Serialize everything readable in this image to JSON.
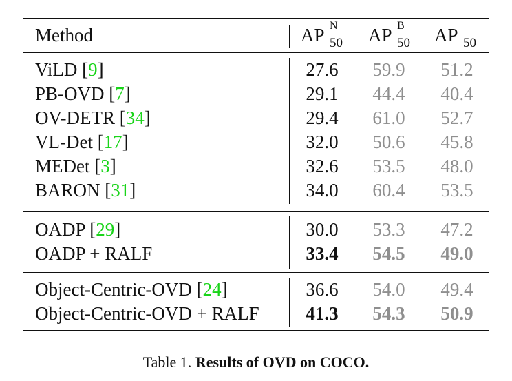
{
  "table": {
    "header": {
      "method": "Method",
      "col1": {
        "base": "AP",
        "sup": "N",
        "sub": "50"
      },
      "col2": {
        "base": "AP",
        "sup": "B",
        "sub": "50"
      },
      "col3": {
        "base": "AP",
        "sup": "",
        "sub": "50"
      }
    },
    "groups": [
      {
        "rows": [
          {
            "name": "ViLD",
            "cite": "9",
            "novel": "27.6",
            "base": "59.9",
            "all": "51.2",
            "bold": false
          },
          {
            "name": "PB-OVD",
            "cite": "7",
            "novel": "29.1",
            "base": "44.4",
            "all": "40.4",
            "bold": false
          },
          {
            "name": "OV-DETR",
            "cite": "34",
            "novel": "29.4",
            "base": "61.0",
            "all": "52.7",
            "bold": false
          },
          {
            "name": "VL-Det",
            "cite": "17",
            "novel": "32.0",
            "base": "50.6",
            "all": "45.8",
            "bold": false
          },
          {
            "name": "MEDet",
            "cite": "3",
            "novel": "32.6",
            "base": "53.5",
            "all": "48.0",
            "bold": false
          },
          {
            "name": "BARON",
            "cite": "31",
            "novel": "34.0",
            "base": "60.4",
            "all": "53.5",
            "bold": false
          }
        ]
      },
      {
        "rows": [
          {
            "name": "OADP",
            "cite": "29",
            "novel": "30.0",
            "base": "53.3",
            "all": "47.2",
            "bold": false
          },
          {
            "name": "OADP + RALF",
            "cite": "",
            "novel": "33.4",
            "base": "54.5",
            "all": "49.0",
            "bold": true
          }
        ]
      },
      {
        "rows": [
          {
            "name": "Object-Centric-OVD",
            "cite": "24",
            "novel": "36.6",
            "base": "54.0",
            "all": "49.4",
            "bold": false
          },
          {
            "name": "Object-Centric-OVD + RALF",
            "cite": "",
            "novel": "41.3",
            "base": "54.3",
            "all": "50.9",
            "bold": true
          }
        ]
      }
    ]
  },
  "caption": {
    "prefix": "Table 1.",
    "title": "Results of OVD on COCO."
  },
  "colors": {
    "cite": "#19d419",
    "gray": "#8f8f8f"
  }
}
